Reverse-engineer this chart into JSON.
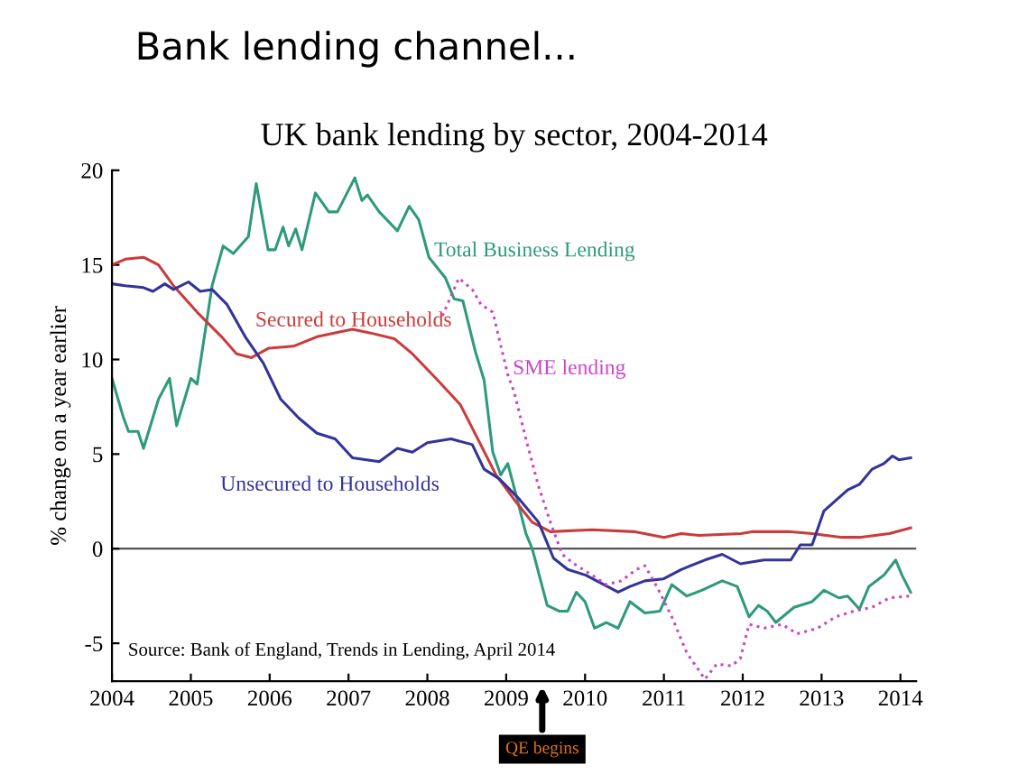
{
  "chart_data": {
    "type": "line",
    "title": "Bank lending channel...",
    "subtitle": "UK bank lending by sector, 2004-2014",
    "ylabel": "% change on a year earlier",
    "xlim": [
      2004,
      2014.2
    ],
    "xticks": [
      2004,
      2005,
      2006,
      2007,
      2008,
      2009,
      2010,
      2011,
      2012,
      2013,
      2014
    ],
    "ylim": [
      -7,
      20
    ],
    "yticks": [
      -5,
      0,
      5,
      10,
      15,
      20
    ],
    "grid": false,
    "legend": false,
    "marker": "none",
    "line_style": "solid",
    "ref_lines": [
      {
        "axis": "y",
        "value": 0,
        "color": "#555555"
      }
    ],
    "series": [
      {
        "name": "Total Business Lending",
        "color": "#2e9a7c",
        "x": [
          2004.0,
          2004.14,
          2004.21,
          2004.33,
          2004.4,
          2004.59,
          2004.73,
          2004.82,
          2005.0,
          2005.08,
          2005.27,
          2005.41,
          2005.54,
          2005.73,
          2005.83,
          2005.98,
          2006.07,
          2006.17,
          2006.24,
          2006.33,
          2006.41,
          2006.58,
          2006.75,
          2006.86,
          2007.08,
          2007.17,
          2007.24,
          2007.39,
          2007.62,
          2007.77,
          2007.89,
          2008.02,
          2008.23,
          2008.34,
          2008.45,
          2008.61,
          2008.72,
          2008.83,
          2008.93,
          2009.02,
          2009.14,
          2009.25,
          2009.33,
          2009.52,
          2009.67,
          2009.78,
          2009.89,
          2010.0,
          2010.12,
          2010.27,
          2010.42,
          2010.57,
          2010.76,
          2010.95,
          2011.1,
          2011.29,
          2011.48,
          2011.74,
          2011.93,
          2012.08,
          2012.2,
          2012.31,
          2012.42,
          2012.65,
          2012.88,
          2013.03,
          2013.22,
          2013.33,
          2013.48,
          2013.6,
          2013.79,
          2013.94,
          2014.02,
          2014.13
        ],
        "values": [
          9.0,
          7.0,
          6.2,
          6.2,
          5.3,
          7.9,
          9.0,
          6.5,
          9.0,
          8.7,
          13.9,
          16.0,
          15.6,
          16.5,
          19.3,
          15.8,
          15.8,
          17.0,
          16.0,
          16.9,
          15.8,
          18.8,
          17.8,
          17.8,
          19.6,
          18.4,
          18.7,
          17.8,
          16.8,
          18.1,
          17.4,
          15.4,
          14.3,
          13.2,
          13.1,
          10.4,
          8.9,
          5.1,
          3.9,
          4.5,
          2.6,
          0.8,
          0,
          -3.0,
          -3.3,
          -3.3,
          -2.3,
          -2.8,
          -4.2,
          -3.9,
          -4.2,
          -2.8,
          -3.4,
          -3.3,
          -1.9,
          -2.5,
          -2.2,
          -1.7,
          -2.0,
          -3.6,
          -3.0,
          -3.3,
          -3.9,
          -3.1,
          -2.8,
          -2.2,
          -2.6,
          -2.5,
          -3.2,
          -2.0,
          -1.4,
          -0.6,
          -1.4,
          -2.3
        ]
      },
      {
        "name": "Secured to Households",
        "color": "#cc3b3b",
        "x": [
          2004.0,
          2004.17,
          2004.4,
          2004.59,
          2004.78,
          2005.08,
          2005.39,
          2005.58,
          2005.77,
          2005.99,
          2006.3,
          2006.6,
          2007.05,
          2007.28,
          2007.58,
          2007.81,
          2008.11,
          2008.42,
          2008.64,
          2008.87,
          2009.1,
          2009.33,
          2009.56,
          2010.09,
          2010.62,
          2011.0,
          2011.22,
          2011.45,
          2011.98,
          2012.13,
          2012.58,
          2012.88,
          2013.26,
          2013.48,
          2013.86,
          2014.13
        ],
        "values": [
          15.0,
          15.3,
          15.4,
          15.0,
          13.9,
          12.5,
          11.2,
          10.3,
          10.1,
          10.6,
          10.7,
          11.2,
          11.6,
          11.4,
          11.1,
          10.3,
          9.0,
          7.6,
          5.8,
          3.9,
          2.6,
          1.4,
          0.9,
          1.0,
          0.9,
          0.6,
          0.8,
          0.7,
          0.8,
          0.9,
          0.9,
          0.8,
          0.6,
          0.6,
          0.8,
          1.1
        ]
      },
      {
        "name": "Unsecured to Households",
        "color": "#33339a",
        "x": [
          2004.0,
          2004.17,
          2004.4,
          2004.52,
          2004.67,
          2004.78,
          2004.97,
          2005.12,
          2005.27,
          2005.46,
          2005.69,
          2005.92,
          2006.14,
          2006.37,
          2006.6,
          2006.83,
          2007.05,
          2007.39,
          2007.62,
          2007.81,
          2008.0,
          2008.3,
          2008.57,
          2008.72,
          2008.91,
          2009.17,
          2009.41,
          2009.6,
          2009.78,
          2010.01,
          2010.24,
          2010.42,
          2010.57,
          2010.76,
          2010.99,
          2011.22,
          2011.52,
          2011.74,
          2011.97,
          2012.27,
          2012.61,
          2012.73,
          2012.88,
          2013.03,
          2013.33,
          2013.48,
          2013.64,
          2013.79,
          2013.9,
          2013.98,
          2014.13
        ],
        "values": [
          14.0,
          13.9,
          13.8,
          13.6,
          14.0,
          13.7,
          14.1,
          13.6,
          13.7,
          12.9,
          11.2,
          9.8,
          7.9,
          6.9,
          6.1,
          5.8,
          4.8,
          4.6,
          5.3,
          5.1,
          5.6,
          5.8,
          5.5,
          4.2,
          3.7,
          2.6,
          1.4,
          -0.5,
          -1.1,
          -1.4,
          -1.9,
          -2.3,
          -2.0,
          -1.7,
          -1.6,
          -1.1,
          -0.6,
          -0.3,
          -0.8,
          -0.6,
          -0.6,
          0.2,
          0.2,
          2.0,
          3.1,
          3.4,
          4.2,
          4.5,
          4.9,
          4.7,
          4.8
        ]
      },
      {
        "name": "SME lending",
        "color": "#cc44cc",
        "line_style": "dotted",
        "x": [
          2008.19,
          2008.4,
          2008.57,
          2008.68,
          2008.83,
          2009.02,
          2009.1,
          2009.25,
          2009.41,
          2009.56,
          2009.71,
          2009.86,
          2010.09,
          2010.27,
          2010.46,
          2010.65,
          2010.76,
          2010.91,
          2011.1,
          2011.29,
          2011.52,
          2011.67,
          2011.86,
          2011.97,
          2012.08,
          2012.27,
          2012.5,
          2012.69,
          2012.95,
          2013.18,
          2013.41,
          2013.64,
          2013.86,
          2014.13
        ],
        "values": [
          12.3,
          14.3,
          13.7,
          12.9,
          12.5,
          9.2,
          8.3,
          5.8,
          3.3,
          1.4,
          -0.3,
          -0.8,
          -1.4,
          -1.9,
          -1.7,
          -1.1,
          -0.9,
          -2.0,
          -3.6,
          -5.5,
          -6.9,
          -6.1,
          -6.2,
          -5.8,
          -4.0,
          -4.2,
          -4.0,
          -4.5,
          -4.2,
          -3.6,
          -3.3,
          -3.1,
          -2.6,
          -2.5
        ]
      }
    ],
    "annotations": [
      "QE begins",
      "Source: Bank of England, Trends in Lending, April 2014"
    ]
  }
}
